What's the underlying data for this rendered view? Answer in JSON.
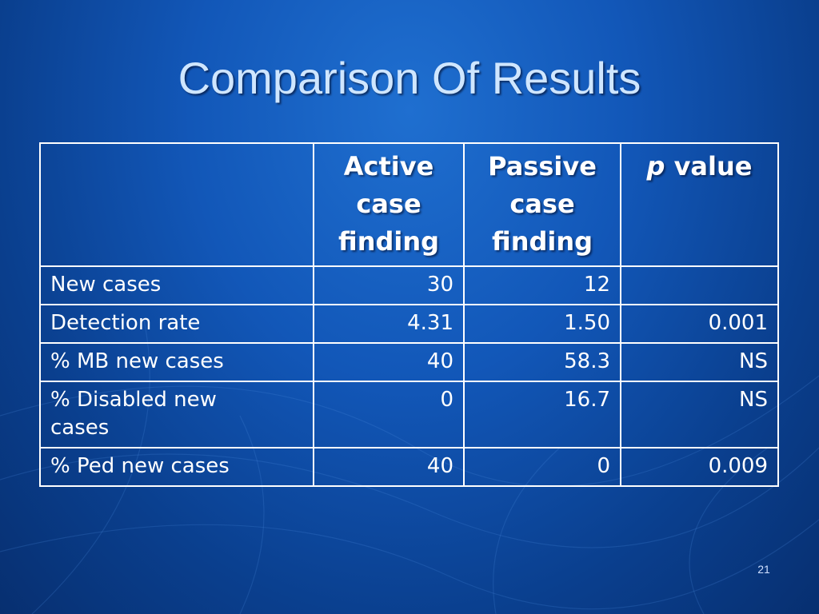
{
  "slide": {
    "title": "Comparison Of Results",
    "slide_number": "21"
  },
  "table": {
    "headers": {
      "active": [
        "Active",
        "case",
        "finding"
      ],
      "passive": [
        "Passive",
        "case",
        "finding"
      ],
      "p_italic": "p",
      "p_rest": "value"
    },
    "rows": [
      {
        "label": "New cases",
        "active": "30",
        "passive": "12",
        "p": ""
      },
      {
        "label": "Detection rate",
        "active": "4.31",
        "passive": "1.50",
        "p": "0.001"
      },
      {
        "label": "% MB new cases",
        "active": "40",
        "passive": "58.3",
        "p": "NS"
      },
      {
        "label_lines": [
          "% Disabled new",
          "cases"
        ],
        "active": "0",
        "passive": "16.7",
        "p": "NS"
      },
      {
        "label": "% Ped new cases",
        "active": "40",
        "passive": "0",
        "p": "0.009"
      }
    ]
  },
  "colors": {
    "background": "#1257b8",
    "title": "#cfe6ff",
    "grid": "#ffffff"
  }
}
